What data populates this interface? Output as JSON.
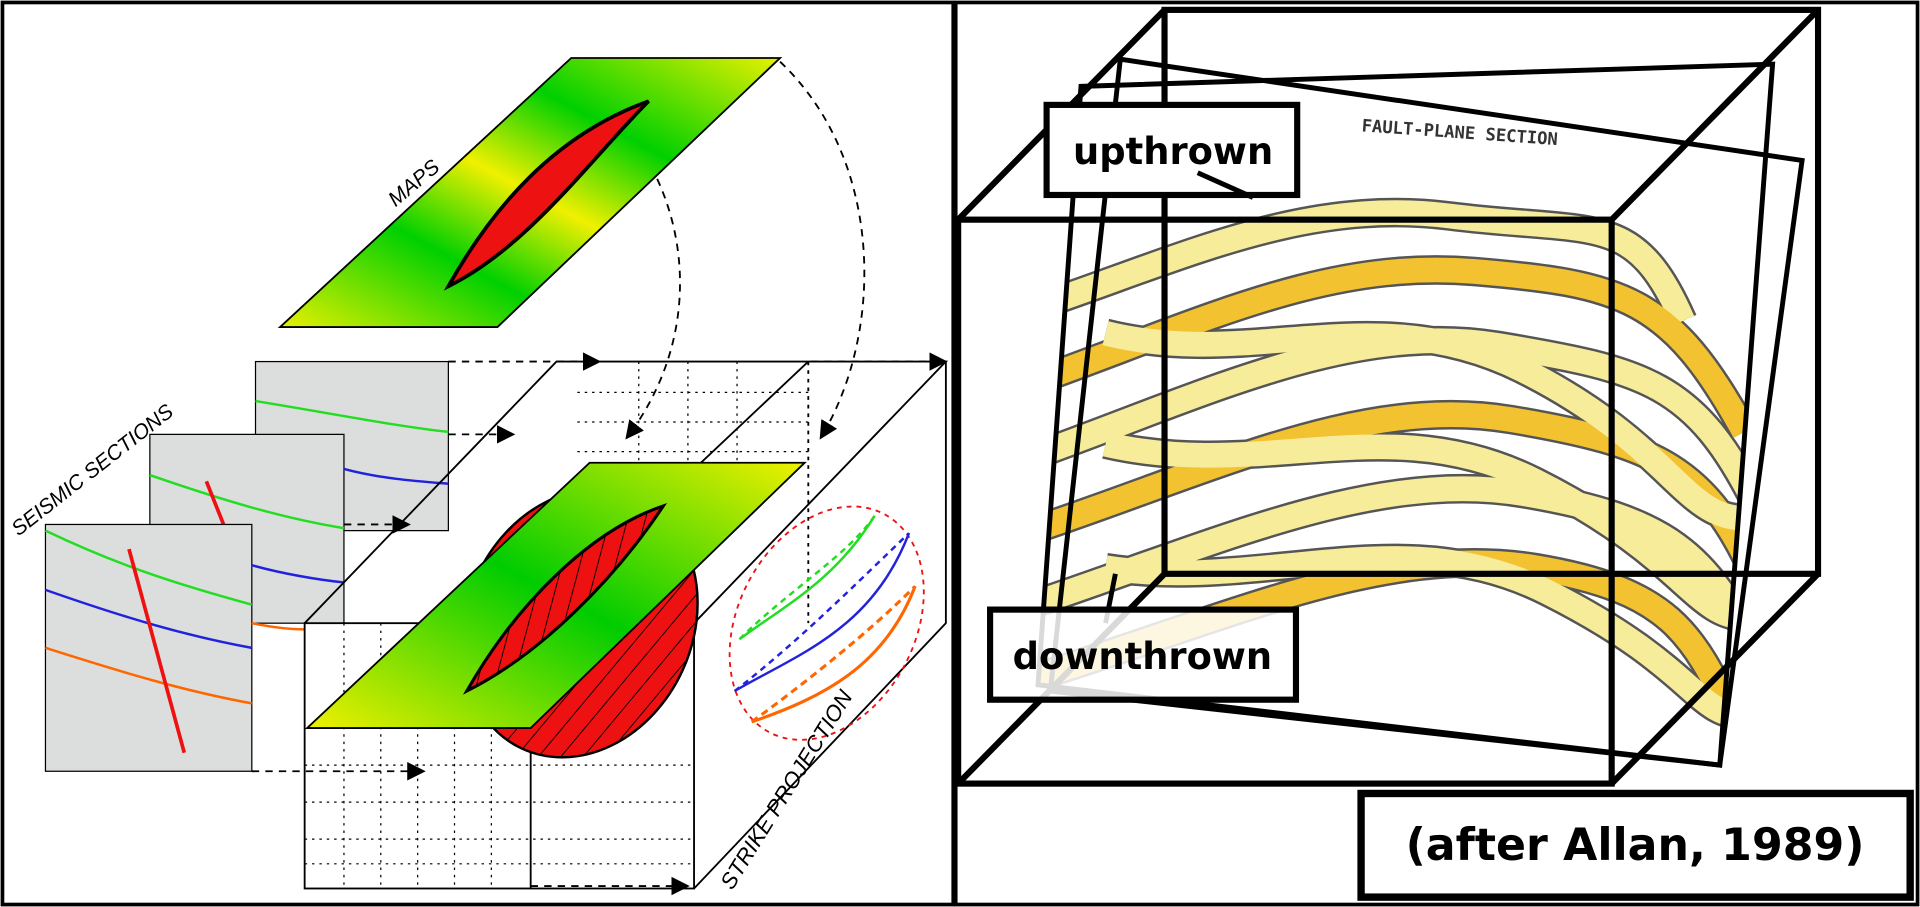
{
  "left_panel": {
    "labels": {
      "maps": "MAPS",
      "seismic_sections": "SEISMIC SECTIONS",
      "strike_projection": "STRIKE PROJECTION"
    }
  },
  "right_panel": {
    "title": "FAULT-PLANE SECTION",
    "upthrown": "upthrown",
    "downthrown": "downthrown",
    "citation": "(after Allan, 1989)"
  }
}
